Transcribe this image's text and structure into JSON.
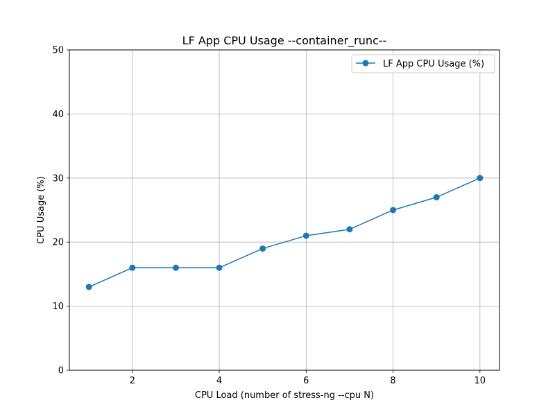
{
  "chart_data": {
    "type": "line",
    "title": "LF App CPU Usage --container_runc--",
    "xlabel": "CPU Load (number of stress-ng --cpu N)",
    "ylabel": "CPU Usage (%)",
    "xlim": [
      0.55,
      10.45
    ],
    "ylim": [
      0,
      50
    ],
    "x_ticks": [
      2,
      4,
      6,
      8,
      10
    ],
    "y_ticks": [
      0,
      10,
      20,
      30,
      40,
      50
    ],
    "grid": true,
    "legend_position": "top-right",
    "x": [
      1,
      2,
      3,
      4,
      5,
      6,
      7,
      8,
      9,
      10
    ],
    "series": [
      {
        "name": "LF App CPU Usage (%)",
        "color": "#1f77b4",
        "marker": "circle",
        "values": [
          13,
          16,
          16,
          16,
          19,
          21,
          22,
          25,
          27,
          30
        ]
      }
    ]
  }
}
